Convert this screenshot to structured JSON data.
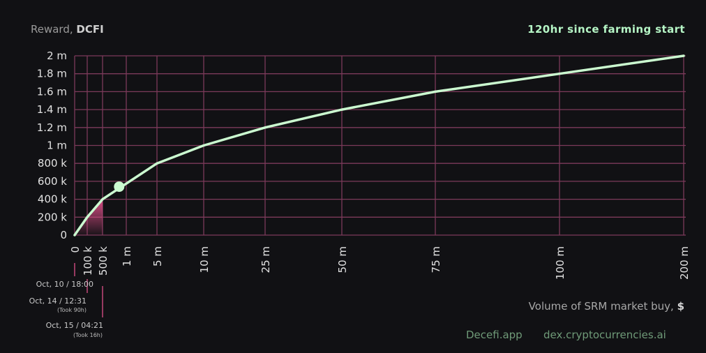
{
  "header": {
    "reward_prefix": "Reward, ",
    "reward_token": "DCFI",
    "period": "120hr since farming start"
  },
  "x_axis_title": {
    "text": "Volume of SRM market buy, ",
    "unit": "$"
  },
  "footer": {
    "site": "Decefi.app",
    "dex": "dex.cryptocurrencies.ai"
  },
  "events": [
    {
      "date": "Oct, 10 / 18:00",
      "took": ""
    },
    {
      "date": "Oct, 14 / 12:31",
      "took": "(Took 90h)"
    },
    {
      "date": "Oct, 15 / 04:21",
      "took": "(Took 16h)"
    }
  ],
  "colors": {
    "background": "#111114",
    "grid": "#7c3a5a",
    "line": "#cbfad0",
    "fill": "#e0508a",
    "accent": "#b5f5c5"
  },
  "chart_data": {
    "type": "line",
    "title": "",
    "xlabel": "Volume of SRM market buy, $",
    "ylabel": "Reward, DCFI",
    "x_scale": "categorical-step",
    "x_ticks": [
      "0",
      "100 k",
      "500 k",
      "1 m",
      "5 m",
      "10 m",
      "25 m",
      "50 m",
      "75 m",
      "100 m",
      "200 m"
    ],
    "y_ticks": [
      "0",
      "200 k",
      "400 k",
      "600 k",
      "800 k",
      "1 m",
      "1.2 m",
      "1.4 m",
      "1.6 m",
      "1.8 m",
      "2 m"
    ],
    "x_values": [
      0,
      100000,
      500000,
      1000000,
      5000000,
      10000000,
      25000000,
      50000000,
      75000000,
      100000000,
      200000000
    ],
    "series": [
      {
        "points": [
          {
            "x": 0,
            "y": 0
          },
          {
            "x": 100000,
            "y": 200000
          },
          {
            "x": 500000,
            "y": 400000
          },
          {
            "x": 5000000,
            "y": 800000
          },
          {
            "x": 10000000,
            "y": 1000000
          },
          {
            "x": 25000000,
            "y": 1200000
          },
          {
            "x": 50000000,
            "y": 1400000
          },
          {
            "x": 75000000,
            "y": 1600000
          },
          {
            "x": 100000000,
            "y": 1800000
          },
          {
            "x": 200000000,
            "y": 2000000
          }
        ]
      }
    ],
    "current_point": {
      "x": 850000,
      "y": 540000
    },
    "filled_range": {
      "x_from": 0,
      "x_to": 500000
    },
    "ylim": [
      0,
      2000000
    ],
    "grid": true,
    "legend": "none"
  }
}
